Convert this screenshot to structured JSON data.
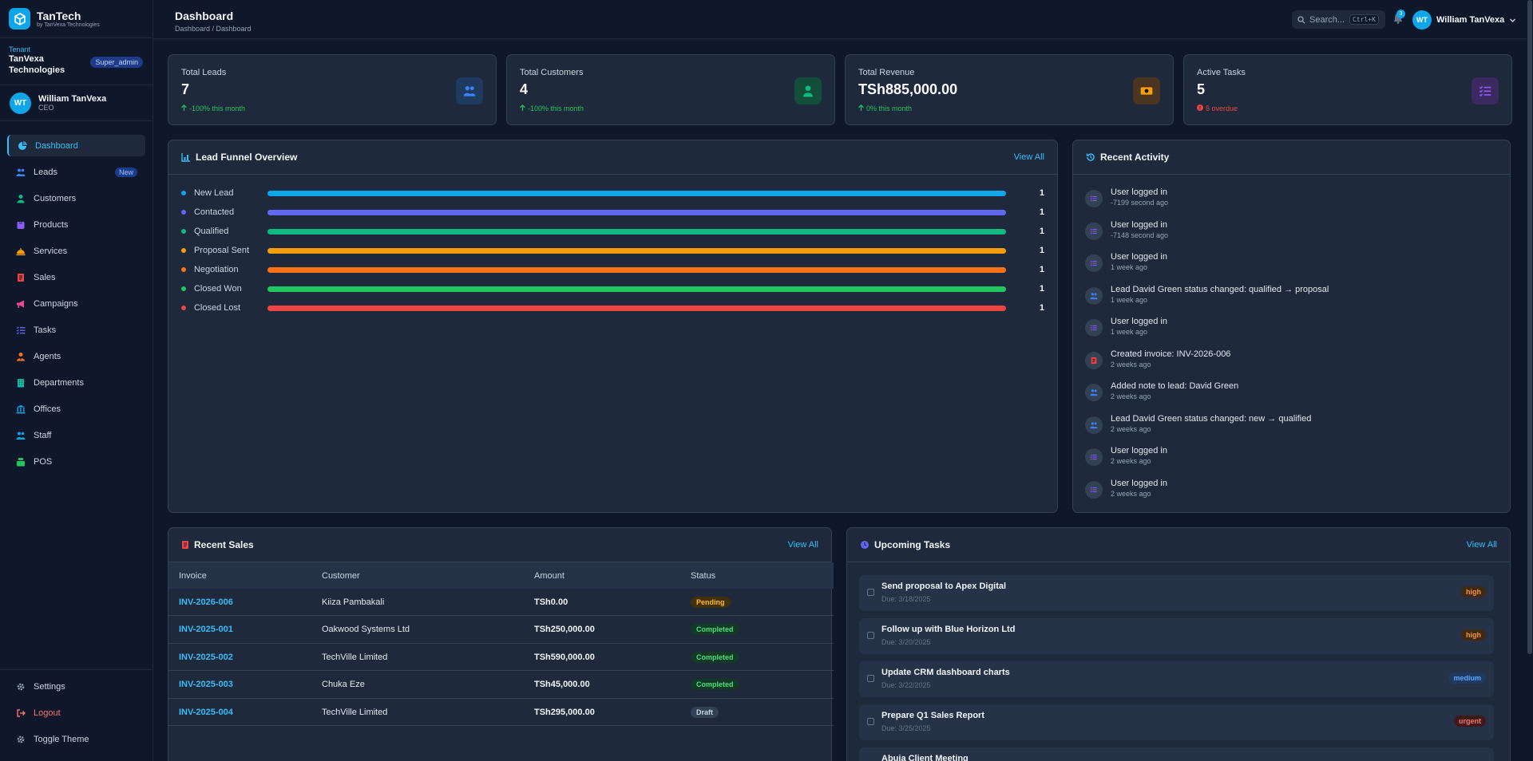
{
  "brand": {
    "name": "TanTech",
    "sub": "by TanVexa Technologies"
  },
  "tenant": {
    "label": "Tenant",
    "name": "TanVexa Technologies",
    "role": "Super_admin"
  },
  "user": {
    "initials": "WT",
    "name": "William TanVexa",
    "role": "CEO"
  },
  "nav": {
    "items": [
      {
        "label": "Dashboard",
        "icon": "chart-pie-icon",
        "color": "#38bdf8"
      },
      {
        "label": "Leads",
        "icon": "users-icon",
        "color": "#3b82f6",
        "badge": "New"
      },
      {
        "label": "Customers",
        "icon": "user-icon",
        "color": "#10b981"
      },
      {
        "label": "Products",
        "icon": "box-icon",
        "color": "#8b5cf6"
      },
      {
        "label": "Services",
        "icon": "concierge-icon",
        "color": "#f59e0b"
      },
      {
        "label": "Sales",
        "icon": "receipt-icon",
        "color": "#ef4444"
      },
      {
        "label": "Campaigns",
        "icon": "megaphone-icon",
        "color": "#ec4899"
      },
      {
        "label": "Tasks",
        "icon": "list-check-icon",
        "color": "#6366f1"
      },
      {
        "label": "Agents",
        "icon": "user-tie-icon",
        "color": "#f97316"
      },
      {
        "label": "Departments",
        "icon": "building-icon",
        "color": "#14b8a6"
      },
      {
        "label": "Offices",
        "icon": "bank-icon",
        "color": "#0ea5e9"
      },
      {
        "label": "Staff",
        "icon": "users-icon",
        "color": "#0ea5e9"
      },
      {
        "label": "POS",
        "icon": "cash-register-icon",
        "color": "#22c55e"
      }
    ],
    "bottom": {
      "settings": "Settings",
      "logout": "Logout",
      "theme": "Toggle Theme"
    }
  },
  "topbar": {
    "title": "Dashboard",
    "breadcrumb": "Dashboard / Dashboard",
    "search_placeholder": "Search...",
    "search_shortcut": "Ctrl+K",
    "notifications": "3",
    "user_name": "William TanVexa"
  },
  "stats": [
    {
      "label": "Total Leads",
      "value": "7",
      "trend": "-100% this month",
      "icon": "users-icon",
      "trend_color": "#22c55e",
      "icon_color": "#3b82f6",
      "icon_bg": "#1e3a5f"
    },
    {
      "label": "Total Customers",
      "value": "4",
      "trend": "-100% this month",
      "icon": "user-icon",
      "trend_color": "#22c55e",
      "icon_color": "#10b981",
      "icon_bg": "#134e3a"
    },
    {
      "label": "Total Revenue",
      "value": "TSh885,000.00",
      "trend": "0% this month",
      "icon": "money-icon",
      "trend_color": "#22c55e",
      "icon_color": "#f59e0b",
      "icon_bg": "#4a3520"
    },
    {
      "label": "Active Tasks",
      "value": "5",
      "trend": "5 overdue",
      "icon": "list-check-icon",
      "trend_color": "#ef4444",
      "icon_color": "#8b5cf6",
      "icon_bg": "#3b2a5f"
    }
  ],
  "funnel": {
    "title": "Lead Funnel Overview",
    "view_all": "View All",
    "stages": [
      {
        "label": "New Lead",
        "count": "1",
        "color": "#0ea5e9",
        "fill": 1
      },
      {
        "label": "Contacted",
        "count": "1",
        "color": "#6366f1",
        "fill": 1
      },
      {
        "label": "Qualified",
        "count": "1",
        "color": "#10b981",
        "fill": 1
      },
      {
        "label": "Proposal Sent",
        "count": "1",
        "color": "#f59e0b",
        "fill": 1
      },
      {
        "label": "Negotiation",
        "count": "1",
        "color": "#f97316",
        "fill": 1
      },
      {
        "label": "Closed Won",
        "count": "1",
        "color": "#22c55e",
        "fill": 1
      },
      {
        "label": "Closed Lost",
        "count": "1",
        "color": "#ef4444",
        "fill": 1
      }
    ]
  },
  "activity": {
    "title": "Recent Activity",
    "items": [
      {
        "text": "User logged in",
        "time": "-7199 second ago",
        "icon": "list-icon",
        "color": "#8b5cf6"
      },
      {
        "text": "User logged in",
        "time": "-7148 second ago",
        "icon": "list-icon",
        "color": "#8b5cf6"
      },
      {
        "text": "User logged in",
        "time": "1 week ago",
        "icon": "list-icon",
        "color": "#8b5cf6"
      },
      {
        "text": "Lead David Green status changed: qualified → proposal",
        "time": "1 week ago",
        "icon": "users-icon",
        "color": "#3b82f6"
      },
      {
        "text": "User logged in",
        "time": "1 week ago",
        "icon": "list-icon",
        "color": "#8b5cf6"
      },
      {
        "text": "Created invoice: INV-2026-006",
        "time": "2 weeks ago",
        "icon": "receipt-icon",
        "color": "#ef4444"
      },
      {
        "text": "Added note to lead: David Green",
        "time": "2 weeks ago",
        "icon": "users-icon",
        "color": "#3b82f6"
      },
      {
        "text": "Lead David Green status changed: new → qualified",
        "time": "2 weeks ago",
        "icon": "users-icon",
        "color": "#3b82f6"
      },
      {
        "text": "User logged in",
        "time": "2 weeks ago",
        "icon": "list-icon",
        "color": "#8b5cf6"
      },
      {
        "text": "User logged in",
        "time": "2 weeks ago",
        "icon": "list-icon",
        "color": "#8b5cf6"
      }
    ]
  },
  "sales": {
    "title": "Recent Sales",
    "view_all": "View All",
    "columns": [
      "Invoice",
      "Customer",
      "Amount",
      "Status"
    ],
    "rows": [
      {
        "invoice": "INV-2026-006",
        "customer": "Kiiza Pambakali",
        "amount": "TSh0.00",
        "status": "Pending",
        "status_fg": "#fbbf24",
        "status_bg": "#422f0c"
      },
      {
        "invoice": "INV-2025-001",
        "customer": "Oakwood Systems Ltd",
        "amount": "TSh250,000.00",
        "status": "Completed",
        "status_fg": "#4ade80",
        "status_bg": "#133a26"
      },
      {
        "invoice": "INV-2025-002",
        "customer": "TechVille Limited",
        "amount": "TSh590,000.00",
        "status": "Completed",
        "status_fg": "#4ade80",
        "status_bg": "#133a26"
      },
      {
        "invoice": "INV-2025-003",
        "customer": "Chuka Eze",
        "amount": "TSh45,000.00",
        "status": "Completed",
        "status_fg": "#4ade80",
        "status_bg": "#133a26"
      },
      {
        "invoice": "INV-2025-004",
        "customer": "TechVille Limited",
        "amount": "TSh295,000.00",
        "status": "Draft",
        "status_fg": "#cbd5e1",
        "status_bg": "#334155"
      }
    ]
  },
  "tasks": {
    "title": "Upcoming Tasks",
    "view_all": "View All",
    "items": [
      {
        "title": "Send proposal to Apex Digital",
        "due": "Due: 3/18/2025",
        "priority": "high",
        "fg": "#fb923c",
        "bg": "#3f2a12"
      },
      {
        "title": "Follow up with Blue Horizon Ltd",
        "due": "Due: 3/20/2025",
        "priority": "high",
        "fg": "#fb923c",
        "bg": "#3f2a12"
      },
      {
        "title": "Update CRM dashboard charts",
        "due": "Due: 3/22/2025",
        "priority": "medium",
        "fg": "#60a5fa",
        "bg": "#1e3a5f"
      },
      {
        "title": "Prepare Q1 Sales Report",
        "due": "Due: 3/25/2025",
        "priority": "urgent",
        "fg": "#f87171",
        "bg": "#3f1a1a"
      },
      {
        "title": "Abuja Client Meeting",
        "due": "",
        "priority": "",
        "fg": "#cbd5e1",
        "bg": "#253247"
      }
    ]
  }
}
